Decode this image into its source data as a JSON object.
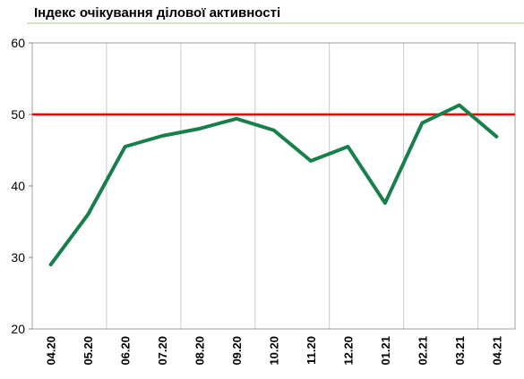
{
  "chart_data": {
    "type": "line",
    "title": "Індекс очікування ділової активності",
    "categories": [
      "04.20",
      "05.20",
      "06.20",
      "07.20",
      "08.20",
      "09.20",
      "10.20",
      "11.20",
      "12.20",
      "01.21",
      "02.21",
      "03.21",
      "04.21"
    ],
    "series": [
      {
        "name": "Індекс очікування ділової активності",
        "color": "#17804a",
        "values": [
          29,
          36,
          45.5,
          47,
          48,
          49.4,
          47.8,
          43.5,
          45.5,
          37.6,
          48.8,
          51.3,
          46.9
        ]
      }
    ],
    "reference_line": {
      "value": 50,
      "color": "#ff0000"
    },
    "ylim": [
      20,
      60
    ],
    "yticks": [
      20,
      30,
      40,
      50,
      60
    ],
    "grid": true
  }
}
